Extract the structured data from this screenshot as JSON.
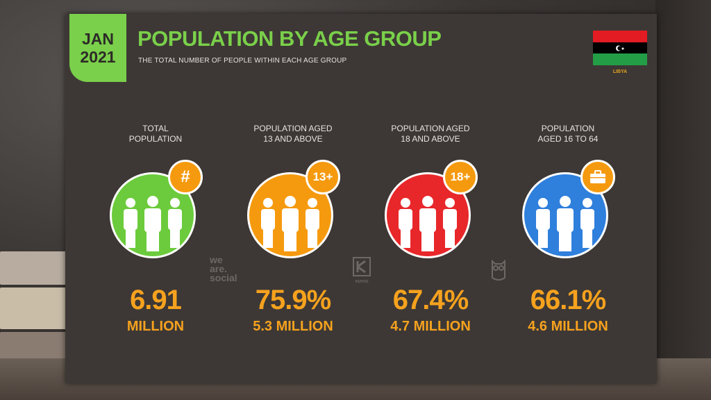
{
  "header": {
    "date_month": "JAN",
    "date_year": "2021",
    "title": "POPULATION BY AGE GROUP",
    "subtitle": "THE TOTAL NUMBER OF PEOPLE WITHIN EACH AGE GROUP",
    "country": "LIBYA"
  },
  "colors": {
    "accent_green": "#7ad04a",
    "value_orange": "#f6a21e",
    "slide_bg": "#3d3835",
    "flag_red": "#e31c23",
    "flag_black": "#000000",
    "flag_green": "#239e46"
  },
  "stats": [
    {
      "label_line1": "TOTAL",
      "label_line2": "POPULATION",
      "icon": "hash-icon",
      "badge_text": "#",
      "color": "#6ccb3c",
      "value": "6.91",
      "sub_value": "MILLION"
    },
    {
      "label_line1": "POPULATION AGED",
      "label_line2": "13 AND ABOVE",
      "icon": "age-13-icon",
      "badge_text": "13+",
      "color": "#f59a0f",
      "value": "75.9%",
      "sub_value": "5.3 MILLION"
    },
    {
      "label_line1": "POPULATION AGED",
      "label_line2": "18 AND ABOVE",
      "icon": "age-18-icon",
      "badge_text": "18+",
      "color": "#e8272a",
      "value": "67.4%",
      "sub_value": "4.7 MILLION"
    },
    {
      "label_line1": "POPULATION",
      "label_line2": "AGED 16 TO 64",
      "icon": "briefcase-icon",
      "badge_text": "",
      "color": "#2f7fdc",
      "value": "66.1%",
      "sub_value": "4.6 MILLION"
    }
  ],
  "watermarks": {
    "wearesocial_1": "we",
    "wearesocial_2": "are.",
    "wearesocial_3": "social",
    "kepios": "KEPIOS"
  }
}
